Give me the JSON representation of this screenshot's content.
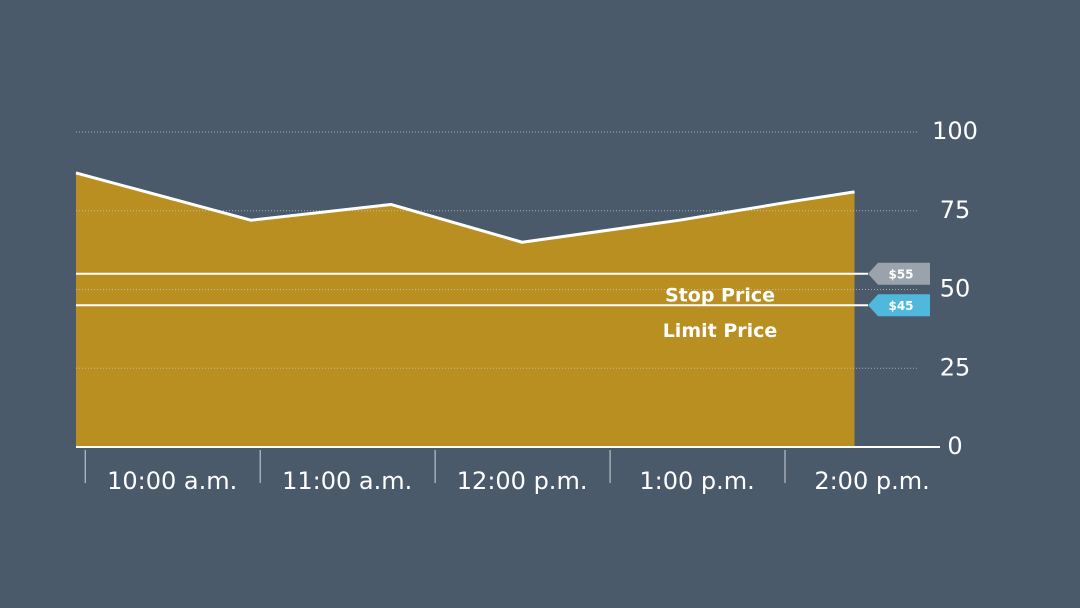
{
  "chart_data": {
    "type": "area",
    "x": [
      9.45,
      10.45,
      11.25,
      12,
      12.9,
      13.55,
      13.9
    ],
    "values": [
      87,
      72,
      77,
      65,
      72,
      78,
      81
    ],
    "color": "#b98f22",
    "line_color": "#ffffff",
    "xlim": [
      9.45,
      14.4
    ],
    "xticks": [
      {
        "value": 10,
        "label": "10:00 a.m."
      },
      {
        "value": 11,
        "label": "11:00 a.m."
      },
      {
        "value": 12,
        "label": "12:00 p.m."
      },
      {
        "value": 13,
        "label": "1:00 p.m."
      },
      {
        "value": 14,
        "label": "2:00 p.m."
      }
    ],
    "ylim": [
      0,
      100
    ],
    "yticks": [
      0,
      25,
      50,
      75,
      100
    ],
    "grid": true,
    "reference_lines": [
      {
        "name": "Stop Price",
        "value": 55,
        "label": "$55",
        "color": "#9aa3ac"
      },
      {
        "name": "Limit Price",
        "value": 45,
        "label": "$45",
        "color": "#4fb8dc"
      }
    ]
  }
}
